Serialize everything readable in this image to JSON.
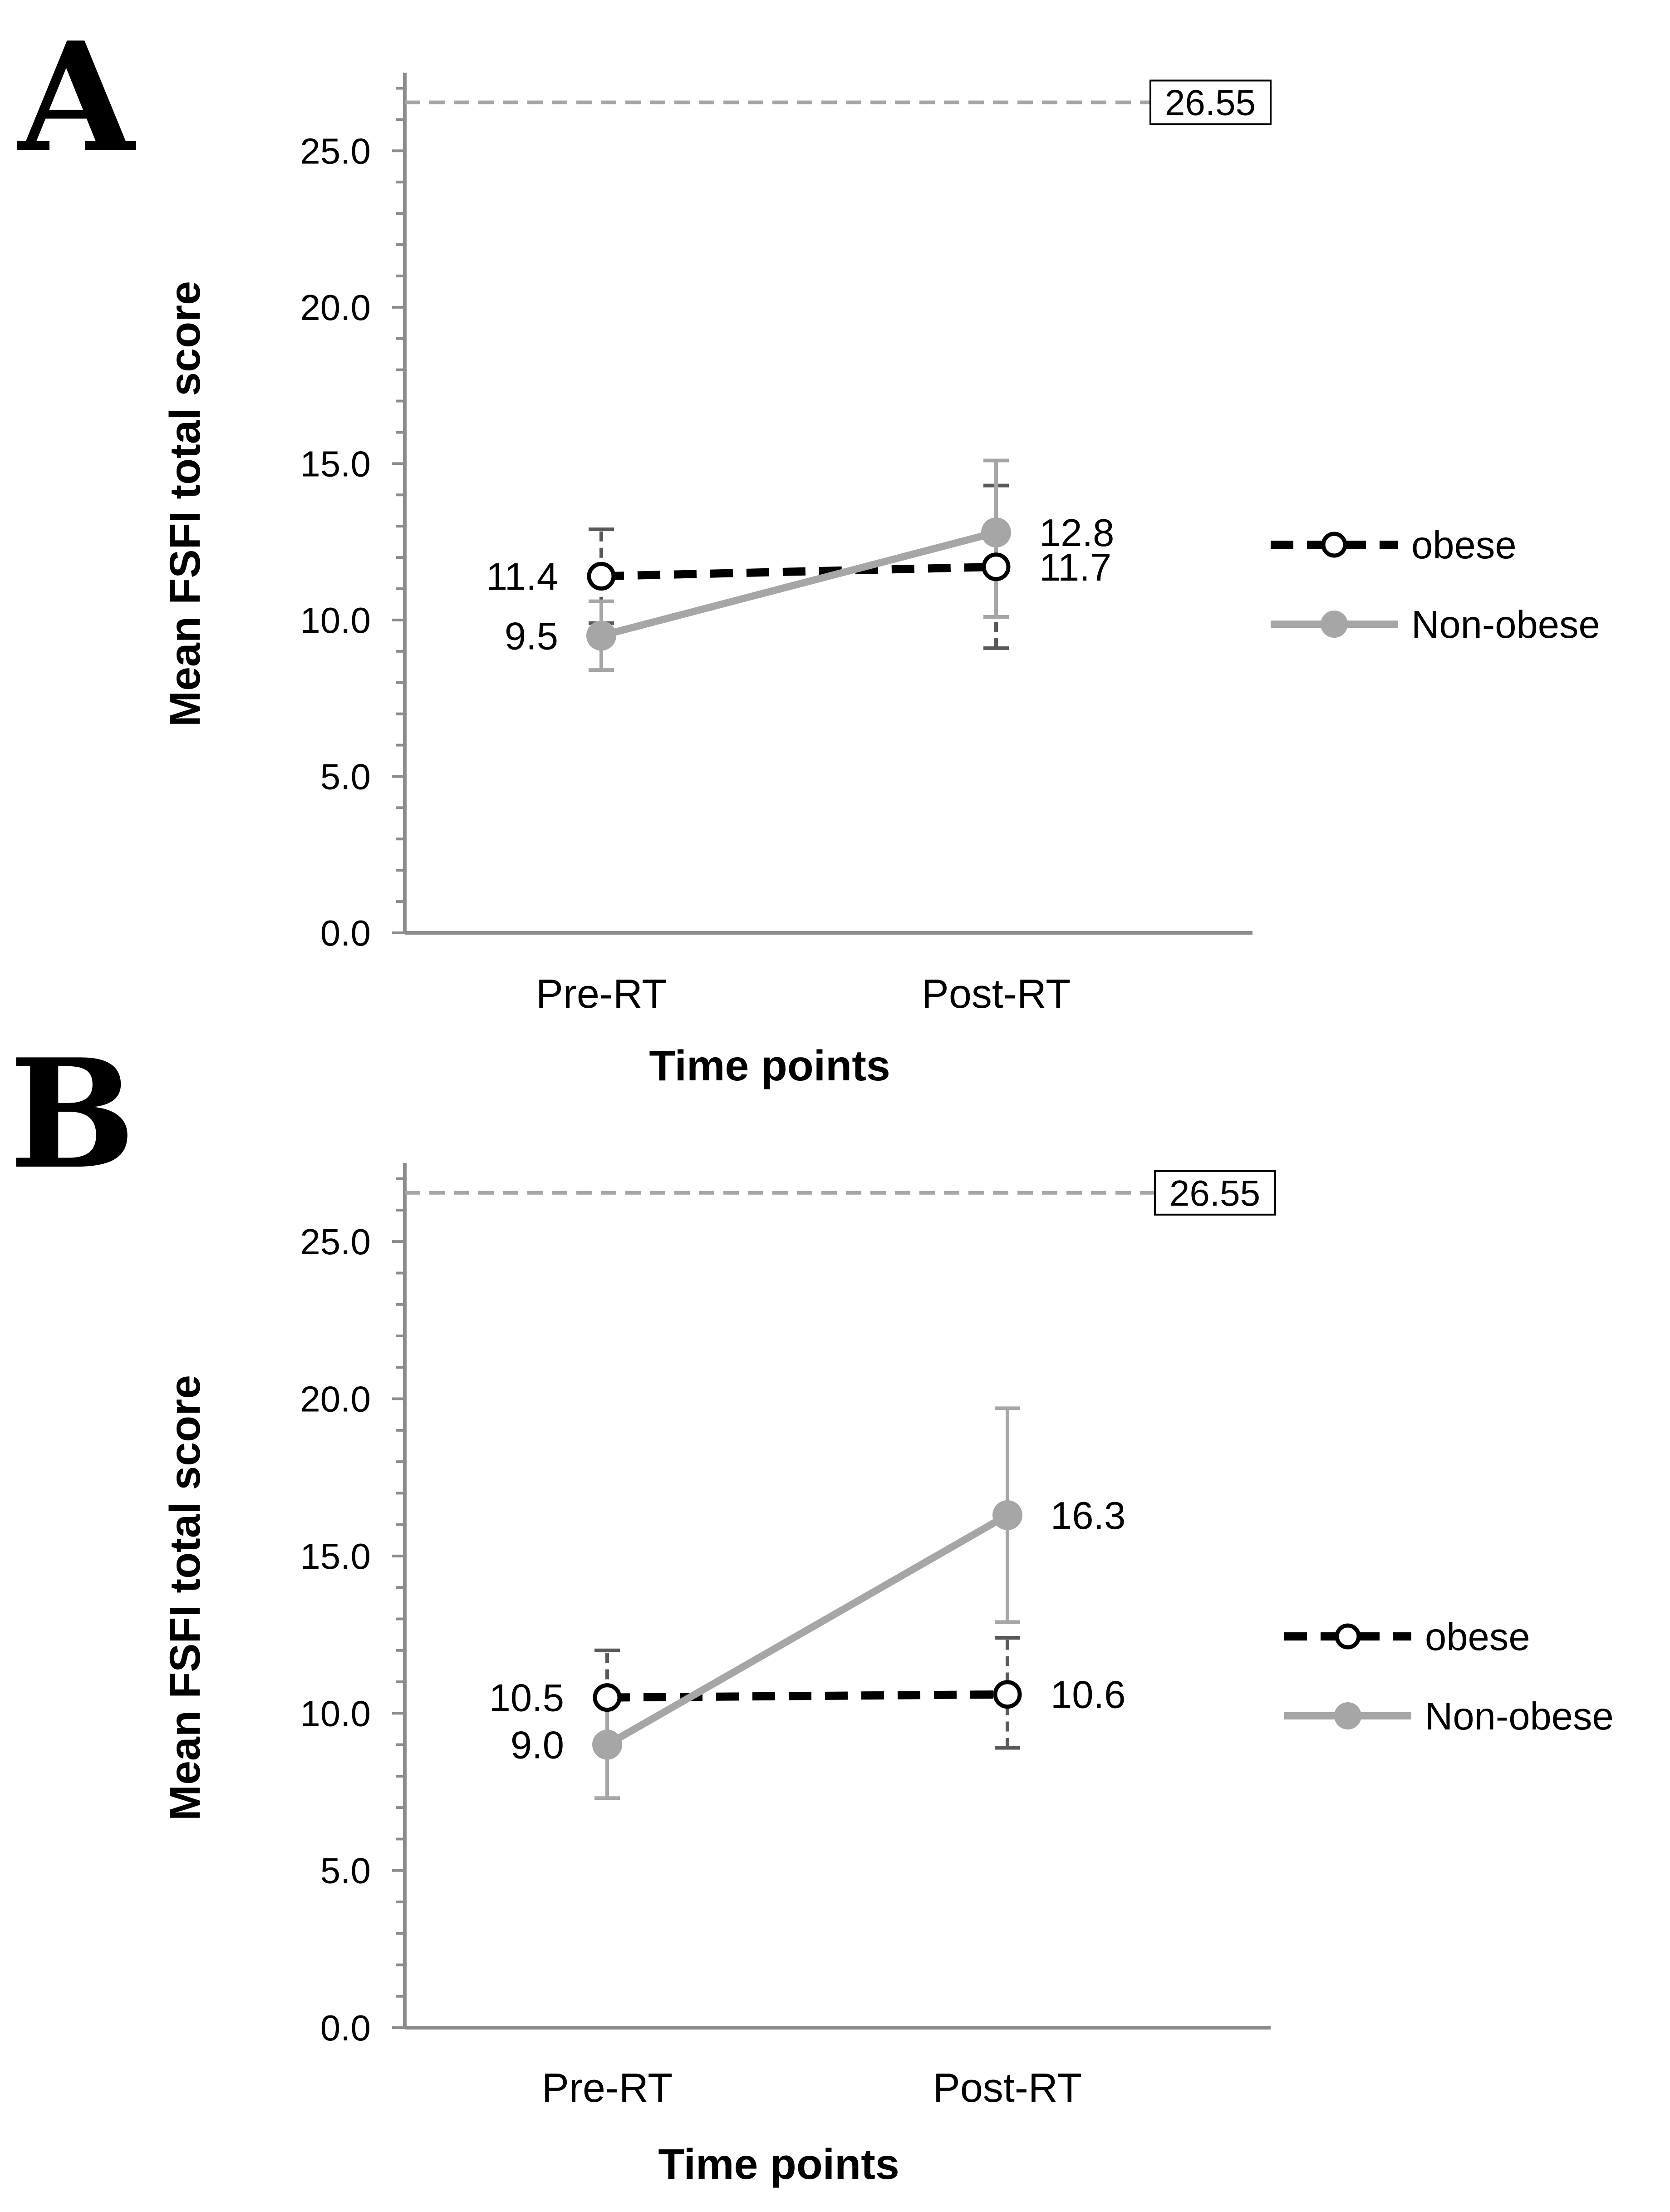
{
  "chart_data": [
    {
      "panel": "A",
      "type": "line",
      "xlabel": "Time points",
      "ylabel": "Mean FSFI total score",
      "categories": [
        "Pre-RT",
        "Post-RT"
      ],
      "ylim": [
        0,
        27.5
      ],
      "yticks": [
        "0.0",
        "5.0",
        "10.0",
        "15.0",
        "20.0",
        "25.0"
      ],
      "reference_line": {
        "value": 26.55,
        "label": "26.55"
      },
      "series": [
        {
          "name": "obese",
          "values": [
            11.4,
            11.7
          ],
          "value_labels": [
            "11.4",
            "11.7"
          ],
          "error_low": [
            9.9,
            9.1
          ],
          "error_high": [
            12.9,
            14.3
          ],
          "color": "#000000",
          "style": "dashed",
          "marker": "open-circle"
        },
        {
          "name": "Non-obese",
          "values": [
            9.5,
            12.8
          ],
          "value_labels": [
            "9.5",
            "12.8"
          ],
          "error_low": [
            8.4,
            10.1
          ],
          "error_high": [
            10.6,
            15.1
          ],
          "color": "#a6a6a6",
          "style": "solid",
          "marker": "filled-circle"
        }
      ],
      "legend": "right",
      "grid": false
    },
    {
      "panel": "B",
      "type": "line",
      "xlabel": "Time points",
      "ylabel": "Mean FSFI total score",
      "categories": [
        "Pre-RT",
        "Post-RT"
      ],
      "ylim": [
        0,
        27.5
      ],
      "yticks": [
        "0.0",
        "5.0",
        "10.0",
        "15.0",
        "20.0",
        "25.0"
      ],
      "reference_line": {
        "value": 26.55,
        "label": "26.55"
      },
      "series": [
        {
          "name": "obese",
          "values": [
            10.5,
            10.6
          ],
          "value_labels": [
            "10.5",
            "10.6"
          ],
          "error_low": [
            9.0,
            8.9
          ],
          "error_high": [
            12.0,
            12.4
          ],
          "color": "#000000",
          "style": "dashed",
          "marker": "open-circle"
        },
        {
          "name": "Non-obese",
          "values": [
            9.0,
            16.3
          ],
          "value_labels": [
            "9.0",
            "16.3"
          ],
          "error_low": [
            7.3,
            12.9
          ],
          "error_high": [
            10.7,
            19.7
          ],
          "color": "#a6a6a6",
          "style": "solid",
          "marker": "filled-circle"
        }
      ],
      "legend": "right",
      "grid": false
    }
  ]
}
